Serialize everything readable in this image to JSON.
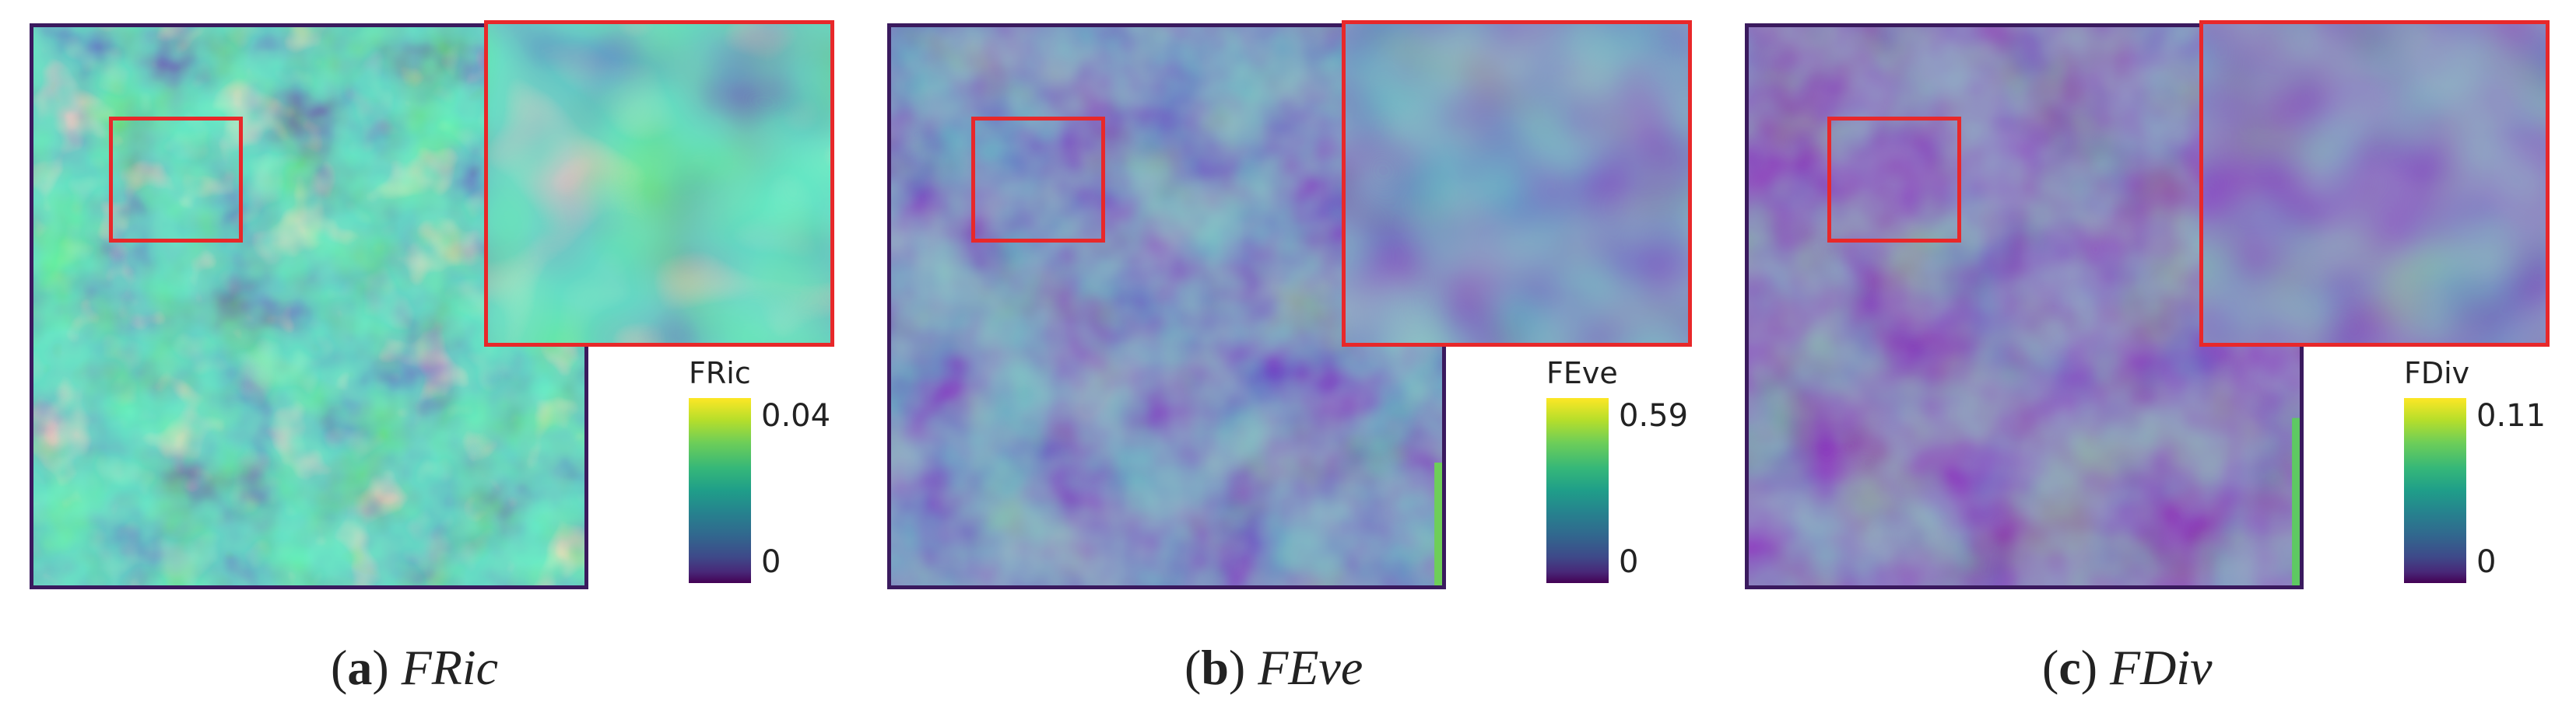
{
  "panels": [
    {
      "id": "a",
      "colorbar": {
        "title": "FRic",
        "max": "0.04",
        "min": "0"
      },
      "caption": {
        "label": "a",
        "name": "FRic"
      },
      "intensity": "high"
    },
    {
      "id": "b",
      "colorbar": {
        "title": "FEve",
        "max": "0.59",
        "min": "0"
      },
      "caption": {
        "label": "b",
        "name": "FEve"
      },
      "intensity": "medium"
    },
    {
      "id": "c",
      "colorbar": {
        "title": "FDiv",
        "max": "0.11",
        "min": "0"
      },
      "caption": {
        "label": "c",
        "name": "FDiv"
      },
      "intensity": "low"
    }
  ],
  "colors": {
    "roi_border": "#e8282a",
    "frame": "#3a1a5e",
    "colormap": "viridis"
  }
}
